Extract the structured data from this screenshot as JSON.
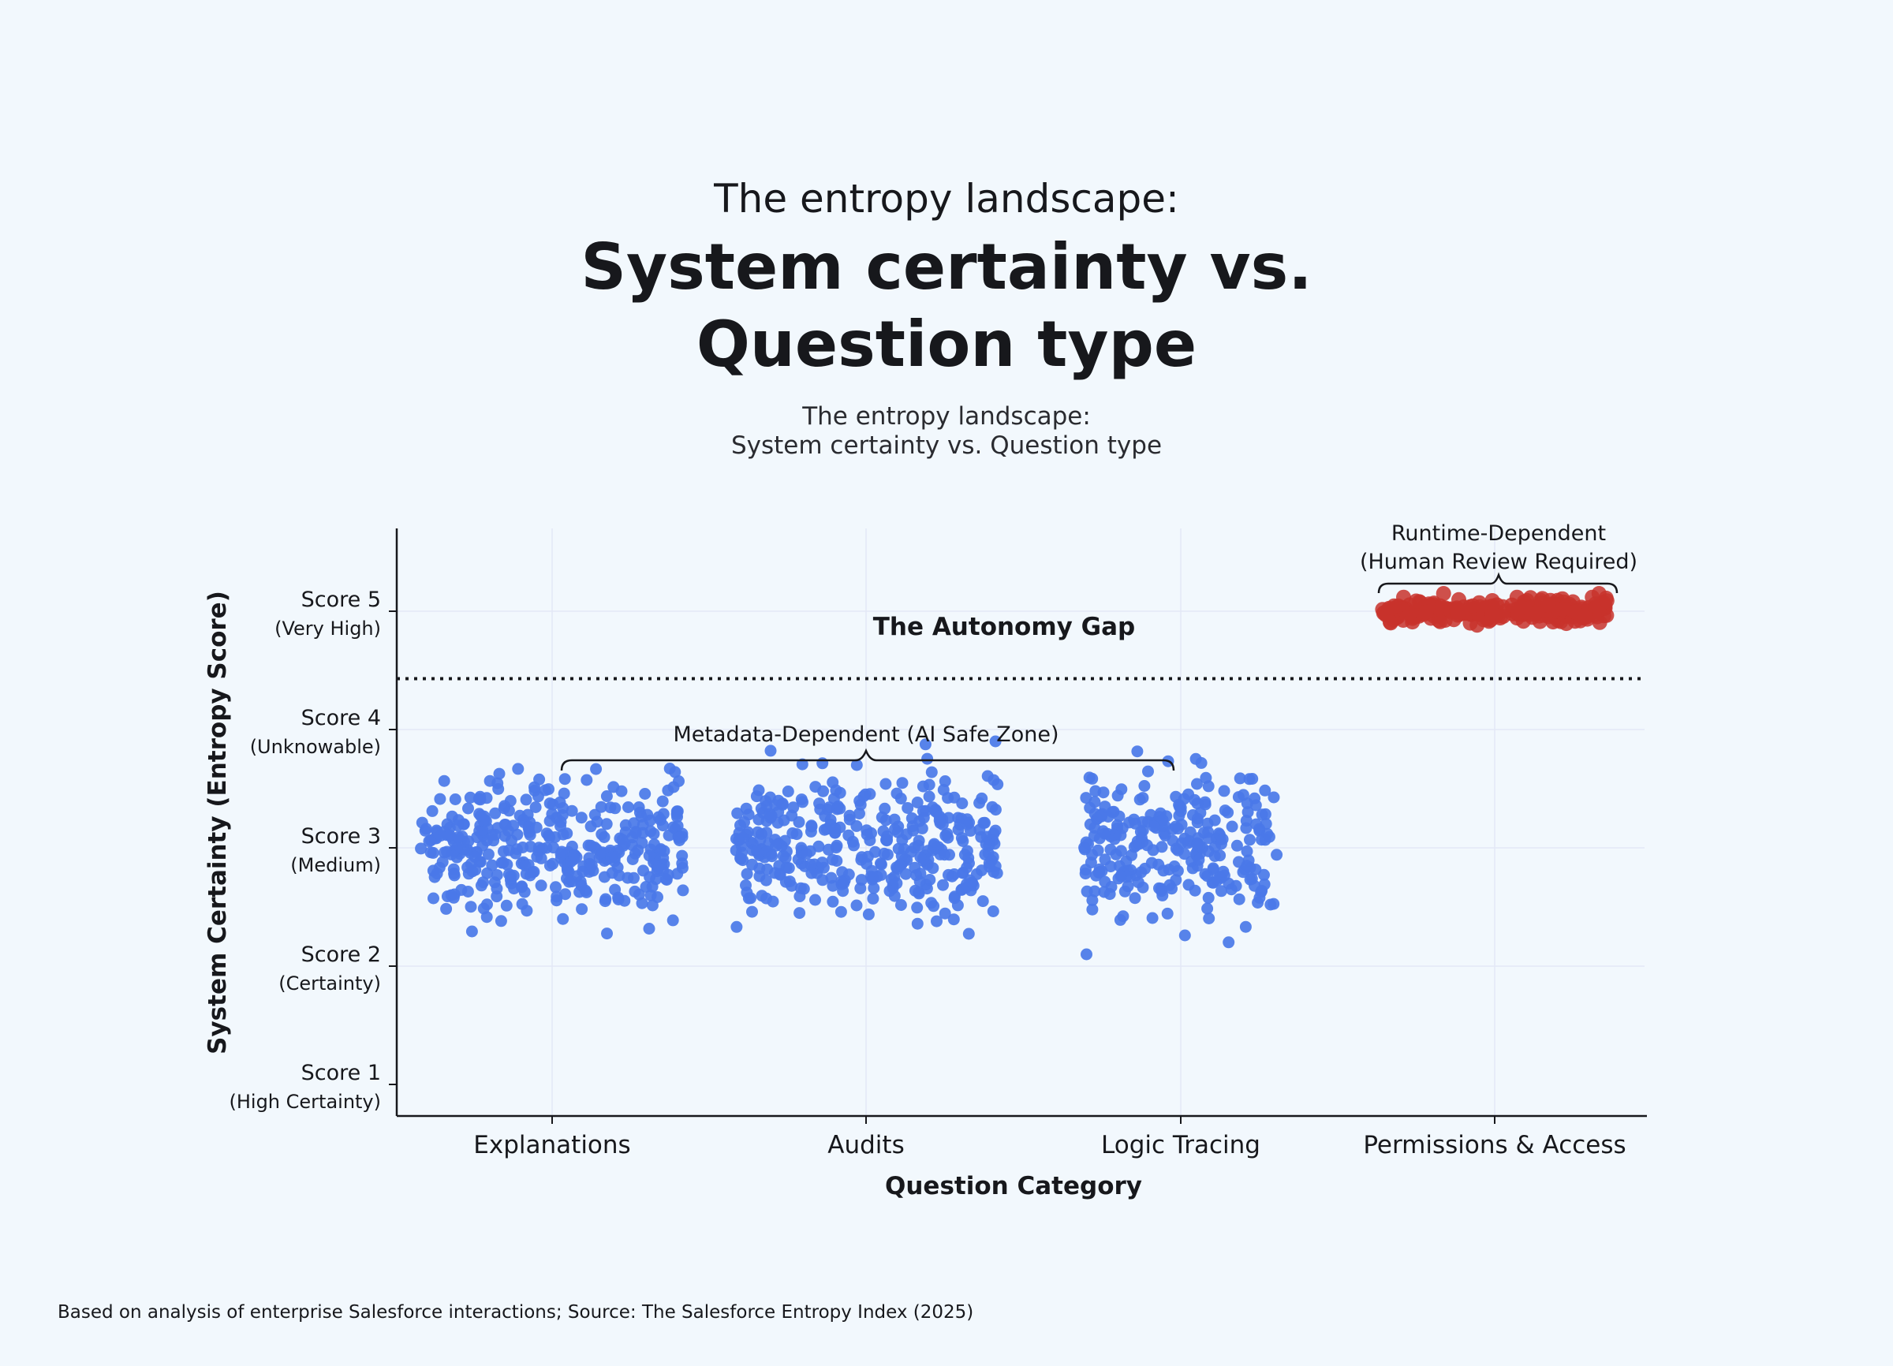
{
  "header": {
    "eyebrow": "The entropy landscape:",
    "title_line1": "System certainty vs.",
    "title_line2": "Question type",
    "subtitle_line1": "The entropy landscape:",
    "subtitle_line2": "System certainty vs. Question type"
  },
  "footnote": "Based on analysis of enterprise Salesforce interactions; Source: The Salesforce Entropy Index (2025)",
  "chart_data": {
    "type": "scatter",
    "xlabel": "Question Category",
    "ylabel": "System Certainty (Entropy Score)",
    "categories": [
      "Explanations",
      "Audits",
      "Logic Tracing",
      "Permissions & Access"
    ],
    "y_ticks": [
      {
        "value": 1,
        "label": "Score 1",
        "sublabel": "(High Certainty)"
      },
      {
        "value": 2,
        "label": "Score 2",
        "sublabel": "(Certainty)"
      },
      {
        "value": 3,
        "label": "Score 3",
        "sublabel": "(Medium)"
      },
      {
        "value": 4,
        "label": "Score 4",
        "sublabel": "(Unknowable)"
      },
      {
        "value": 5,
        "label": "Score 5",
        "sublabel": "(Very High)"
      }
    ],
    "ylim": [
      0.8,
      5.7
    ],
    "threshold": 4.43,
    "grid": true,
    "series": [
      {
        "group": "metadata",
        "color": "#4a78e8",
        "clusters": [
          {
            "category": "Explanations",
            "x_spread": 0.42,
            "y_center": 3.0,
            "y_spread": 0.3,
            "count": 380
          },
          {
            "category": "Audits",
            "x_spread": 0.42,
            "y_center": 3.0,
            "y_spread": 0.3,
            "count": 380
          },
          {
            "category": "Logic Tracing",
            "x_spread": 0.31,
            "y_center": 3.0,
            "y_spread": 0.3,
            "count": 270
          }
        ]
      },
      {
        "group": "runtime",
        "color": "#c8322c",
        "clusters": [
          {
            "category": "Permissions & Access",
            "x_spread": 0.36,
            "y_center": 5.0,
            "y_spread": 0.05,
            "count": 260
          }
        ]
      }
    ],
    "annotations": {
      "gap_label": "The Autonomy Gap",
      "metadata_label": "Metadata-Dependent (AI Safe Zone)",
      "runtime_line1": "Runtime-Dependent",
      "runtime_line2": "(Human Review Required)"
    }
  }
}
